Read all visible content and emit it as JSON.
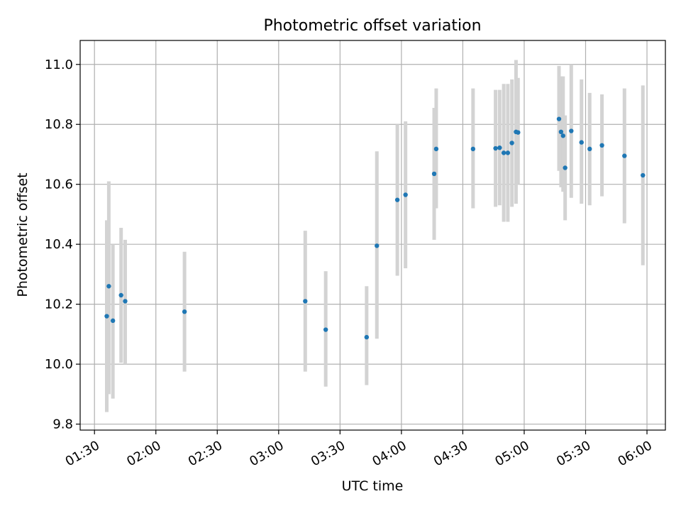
{
  "chart_data": {
    "type": "scatter",
    "title": "Photometric offset variation",
    "xlabel": "UTC time",
    "ylabel": "Photometric offset",
    "x_format": "HH:MM",
    "xlim": [
      "01:23",
      "06:09"
    ],
    "ylim": [
      9.78,
      11.08
    ],
    "grid": true,
    "x_ticks": [
      "01:30",
      "02:00",
      "02:30",
      "03:00",
      "03:30",
      "04:00",
      "04:30",
      "05:00",
      "05:30",
      "06:00"
    ],
    "y_ticks": [
      9.8,
      10.0,
      10.2,
      10.4,
      10.6,
      10.8,
      11.0
    ],
    "y_tick_labels": [
      "9.8",
      "10.0",
      "10.2",
      "10.4",
      "10.6",
      "10.8",
      "11.0"
    ],
    "colors": {
      "marker": "#1f77b4",
      "errorbar": "#d3d3d3",
      "grid": "#b0b0b0"
    },
    "series": [
      {
        "points": [
          {
            "x": "01:36",
            "y": 10.16,
            "ylow": 9.84,
            "yhigh": 10.48
          },
          {
            "x": "01:37",
            "y": 10.26,
            "ylow": 9.9,
            "yhigh": 10.61
          },
          {
            "x": "01:39",
            "y": 10.145,
            "ylow": 9.885,
            "yhigh": 10.4
          },
          {
            "x": "01:43",
            "y": 10.23,
            "ylow": 10.005,
            "yhigh": 10.455
          },
          {
            "x": "01:45",
            "y": 10.21,
            "ylow": 10.0,
            "yhigh": 10.415
          },
          {
            "x": "02:14",
            "y": 10.175,
            "ylow": 9.975,
            "yhigh": 10.375
          },
          {
            "x": "03:13",
            "y": 10.21,
            "ylow": 9.975,
            "yhigh": 10.445
          },
          {
            "x": "03:23",
            "y": 10.115,
            "ylow": 9.925,
            "yhigh": 10.31
          },
          {
            "x": "03:43",
            "y": 10.09,
            "ylow": 9.93,
            "yhigh": 10.26
          },
          {
            "x": "03:48",
            "y": 10.395,
            "ylow": 10.085,
            "yhigh": 10.71
          },
          {
            "x": "03:58",
            "y": 10.548,
            "ylow": 10.295,
            "yhigh": 10.8
          },
          {
            "x": "04:02",
            "y": 10.565,
            "ylow": 10.32,
            "yhigh": 10.81
          },
          {
            "x": "04:16",
            "y": 10.635,
            "ylow": 10.415,
            "yhigh": 10.855
          },
          {
            "x": "04:17",
            "y": 10.718,
            "ylow": 10.52,
            "yhigh": 10.92
          },
          {
            "x": "04:35",
            "y": 10.718,
            "ylow": 10.52,
            "yhigh": 10.92
          },
          {
            "x": "04:46",
            "y": 10.72,
            "ylow": 10.525,
            "yhigh": 10.915
          },
          {
            "x": "04:48",
            "y": 10.722,
            "ylow": 10.53,
            "yhigh": 10.915
          },
          {
            "x": "04:50",
            "y": 10.705,
            "ylow": 10.475,
            "yhigh": 10.935
          },
          {
            "x": "04:52",
            "y": 10.705,
            "ylow": 10.475,
            "yhigh": 10.935
          },
          {
            "x": "04:54",
            "y": 10.738,
            "ylow": 10.525,
            "yhigh": 10.95
          },
          {
            "x": "04:56",
            "y": 10.775,
            "ylow": 10.535,
            "yhigh": 11.015
          },
          {
            "x": "04:57",
            "y": 10.773,
            "ylow": 10.6,
            "yhigh": 10.955
          },
          {
            "x": "05:17",
            "y": 10.818,
            "ylow": 10.645,
            "yhigh": 10.995
          },
          {
            "x": "05:18",
            "y": 10.775,
            "ylow": 10.59,
            "yhigh": 10.96
          },
          {
            "x": "05:19",
            "y": 10.762,
            "ylow": 10.575,
            "yhigh": 10.96
          },
          {
            "x": "05:20",
            "y": 10.655,
            "ylow": 10.48,
            "yhigh": 10.83
          },
          {
            "x": "05:23",
            "y": 10.778,
            "ylow": 10.555,
            "yhigh": 11.0
          },
          {
            "x": "05:28",
            "y": 10.74,
            "ylow": 10.535,
            "yhigh": 10.95
          },
          {
            "x": "05:32",
            "y": 10.718,
            "ylow": 10.53,
            "yhigh": 10.905
          },
          {
            "x": "05:38",
            "y": 10.73,
            "ylow": 10.56,
            "yhigh": 10.9
          },
          {
            "x": "05:49",
            "y": 10.695,
            "ylow": 10.47,
            "yhigh": 10.92
          },
          {
            "x": "05:58",
            "y": 10.63,
            "ylow": 10.33,
            "yhigh": 10.93
          }
        ]
      }
    ]
  }
}
